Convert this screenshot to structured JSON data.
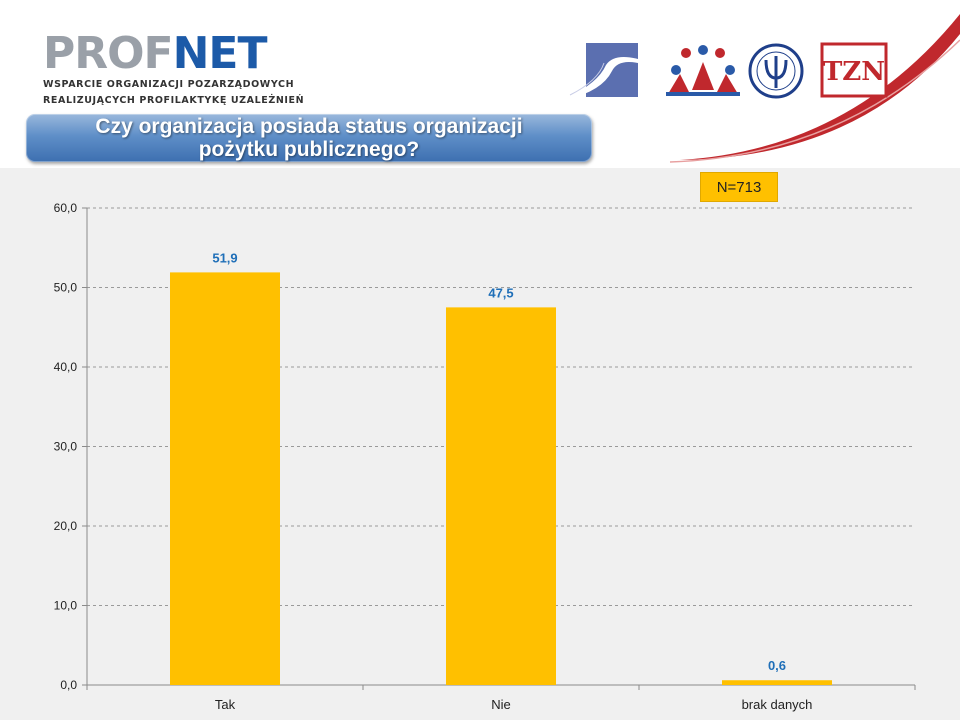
{
  "header": {
    "brand_part1": "PROF",
    "brand_part2": "NET",
    "brand_line1": "WSPARCIE ORGANIZACJI POZARZĄDOWYCH",
    "brand_line2": "REALIZUJĄCYCH PROFILAKTYKĘ UZALEŻNIEŃ",
    "logos": [
      "wave-logo",
      "people-logo",
      "psychology-logo",
      "tzn-logo"
    ],
    "tzn_logo_text": "TZN"
  },
  "title": {
    "line1": "Czy organizacja posiada status organizacji",
    "line2": "pożytku publicznego?"
  },
  "badge": {
    "n_label": "N=713"
  },
  "colors": {
    "bar": "#ffc000",
    "data_label": "#1f6fb8",
    "title_bg": "#4a7cc0",
    "badge": "#ffc000",
    "accent_red": "#c0282d"
  },
  "chart_data": {
    "type": "bar",
    "categories": [
      "Tak",
      "Nie",
      "brak danych"
    ],
    "values": [
      51.9,
      47.5,
      0.6
    ],
    "value_labels": [
      "51,9",
      "47,5",
      "0,6"
    ],
    "ylim": [
      0,
      60
    ],
    "yticks": [
      0,
      10,
      20,
      30,
      40,
      50,
      60
    ],
    "ytick_labels": [
      "0,0",
      "10,0",
      "20,0",
      "30,0",
      "40,0",
      "50,0",
      "60,0"
    ],
    "grid": true,
    "xlabel": "",
    "ylabel": ""
  }
}
